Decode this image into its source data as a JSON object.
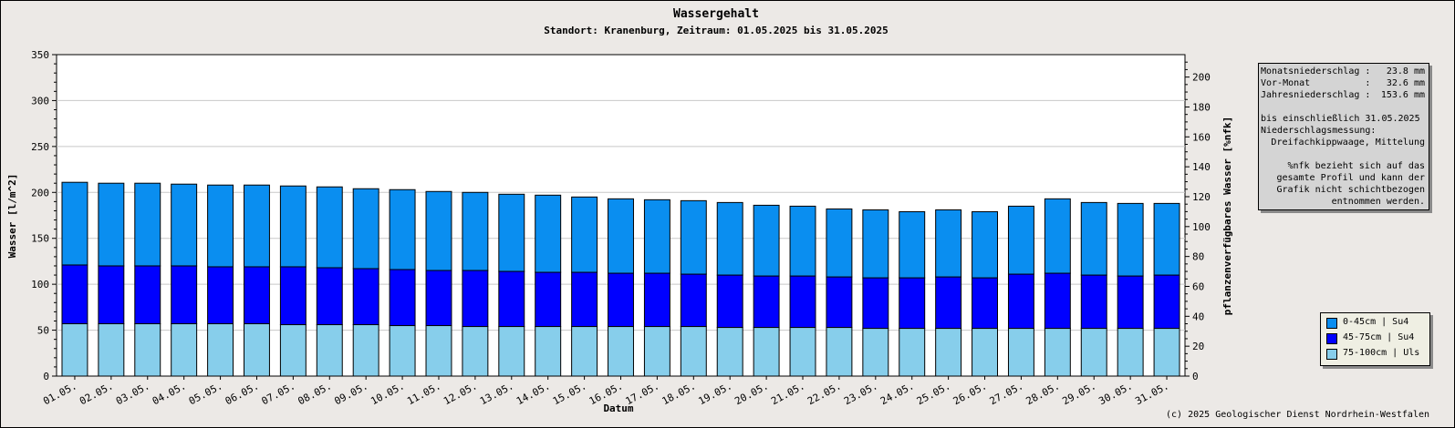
{
  "chart_data": {
    "type": "bar",
    "stacked": true,
    "title": "Wassergehalt",
    "subtitle": "Standort: Kranenburg, Zeitraum: 01.05.2025 bis 31.05.2025",
    "xlabel": "Datum",
    "ylabel": "Wasser [l/m^2]",
    "y2label": "pflanzenverfügbares Wasser [%nfk]",
    "ylim": [
      0,
      350
    ],
    "y2lim": [
      0,
      215
    ],
    "yticks": [
      "0",
      "50",
      "100",
      "150",
      "200",
      "250",
      "300",
      "350"
    ],
    "y2ticks": [
      "0",
      "20",
      "40",
      "60",
      "80",
      "100",
      "120",
      "140",
      "160",
      "180",
      "200"
    ],
    "grid": true,
    "categories": [
      "01.05.",
      "02.05.",
      "03.05.",
      "04.05.",
      "05.05.",
      "06.05.",
      "07.05.",
      "08.05.",
      "09.05.",
      "10.05.",
      "11.05.",
      "12.05.",
      "13.05.",
      "14.05.",
      "15.05.",
      "16.05.",
      "17.05.",
      "18.05.",
      "19.05.",
      "20.05.",
      "21.05.",
      "22.05.",
      "23.05.",
      "24.05.",
      "25.05.",
      "26.05.",
      "27.05.",
      "28.05.",
      "29.05.",
      "30.05.",
      "31.05."
    ],
    "series": [
      {
        "name": "75-100cm | Uls",
        "color": "#87ceeb",
        "values": [
          57,
          57,
          57,
          57,
          57,
          57,
          56,
          56,
          56,
          55,
          55,
          54,
          54,
          54,
          54,
          54,
          54,
          54,
          53,
          53,
          53,
          53,
          52,
          52,
          52,
          52,
          52,
          52,
          52,
          52,
          52
        ]
      },
      {
        "name": "45-75cm | Su4",
        "color": "#0000ff",
        "values": [
          64,
          63,
          63,
          63,
          62,
          62,
          63,
          62,
          61,
          61,
          60,
          61,
          60,
          59,
          59,
          58,
          58,
          57,
          57,
          56,
          56,
          55,
          55,
          55,
          56,
          55,
          59,
          60,
          58,
          57,
          58
        ]
      },
      {
        "name": "0-45cm | Su4",
        "color": "#0a8ef0",
        "values": [
          90,
          90,
          90,
          89,
          89,
          89,
          88,
          88,
          87,
          87,
          86,
          85,
          84,
          84,
          82,
          81,
          80,
          80,
          79,
          77,
          76,
          74,
          74,
          72,
          73,
          72,
          74,
          81,
          79,
          79,
          78
        ]
      }
    ],
    "legend_position": "right-bottom"
  },
  "info": {
    "lines": [
      {
        "label": "Monatsniederschlag :",
        "value": "23.8 mm"
      },
      {
        "label": "Vor-Monat          :",
        "value": "32.6 mm"
      },
      {
        "label": "Jahresniederschlag :",
        "value": "153.6 mm"
      }
    ],
    "until": "bis einschließlich 31.05.2025",
    "measure_title": "Niederschlagsmessung:",
    "measure_value": "Dreifachkippwaage, Mittelung",
    "note_lines": [
      "%nfk bezieht sich auf das",
      "gesamte Profil und kann der",
      "Grafik nicht schichtbezogen",
      "entnommen werden."
    ]
  },
  "copyright": "(c) 2025 Geologischer Dienst Nordrhein-Westfalen"
}
